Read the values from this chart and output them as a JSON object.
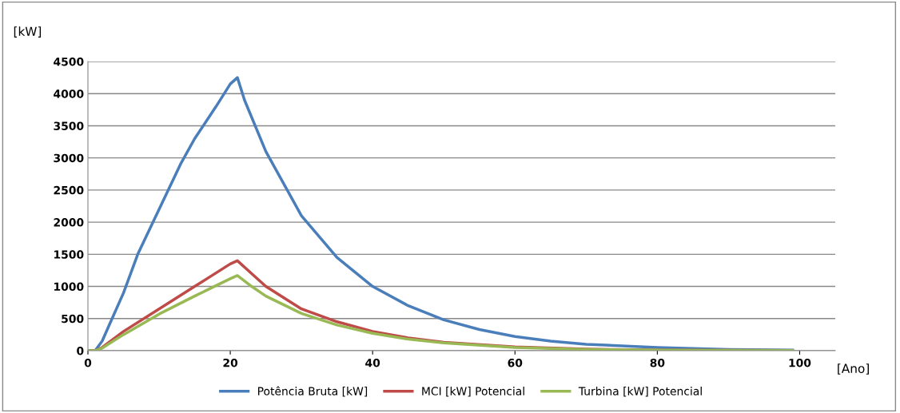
{
  "chart_data": {
    "type": "line",
    "xlabel": "[Ano]",
    "ylabel": "[kW]",
    "xlim": [
      0,
      105
    ],
    "xticks": [
      0,
      20,
      40,
      60,
      80,
      100
    ],
    "ylim": [
      0,
      4500
    ],
    "yticks": [
      0,
      500,
      1000,
      1500,
      2000,
      2500,
      3000,
      3500,
      4000,
      4500
    ],
    "grid": "y",
    "legend": "bottom",
    "marker": "none",
    "line_style": "solid",
    "series": [
      {
        "name": "Potência Bruta [kW]",
        "color": "#4a7ebb",
        "x": [
          0,
          1,
          2,
          3,
          5,
          7,
          10,
          13,
          15,
          18,
          20,
          21,
          22,
          25,
          28,
          30,
          35,
          40,
          45,
          50,
          55,
          60,
          65,
          70,
          80,
          90,
          99
        ],
        "values": [
          0,
          0,
          150,
          400,
          900,
          1500,
          2200,
          2900,
          3300,
          3800,
          4150,
          4250,
          3900,
          3100,
          2500,
          2100,
          1450,
          1000,
          700,
          480,
          330,
          220,
          150,
          100,
          50,
          20,
          10
        ]
      },
      {
        "name": "MCI [kW] Potencial",
        "color": "#be4b48",
        "x": [
          0,
          1,
          2,
          5,
          10,
          15,
          20,
          21,
          23,
          25,
          30,
          35,
          40,
          45,
          50,
          60,
          70,
          80,
          99
        ],
        "values": [
          0,
          0,
          50,
          300,
          650,
          1000,
          1350,
          1400,
          1200,
          1000,
          650,
          450,
          300,
          200,
          130,
          60,
          25,
          10,
          2
        ]
      },
      {
        "name": "Turbina [kW] Potencial",
        "color": "#98b954",
        "x": [
          0,
          1,
          2,
          5,
          10,
          15,
          20,
          21,
          23,
          25,
          30,
          35,
          40,
          45,
          50,
          60,
          70,
          80,
          99
        ],
        "values": [
          0,
          0,
          40,
          250,
          570,
          850,
          1120,
          1170,
          1000,
          850,
          580,
          400,
          270,
          180,
          120,
          50,
          20,
          8,
          2
        ]
      }
    ]
  }
}
